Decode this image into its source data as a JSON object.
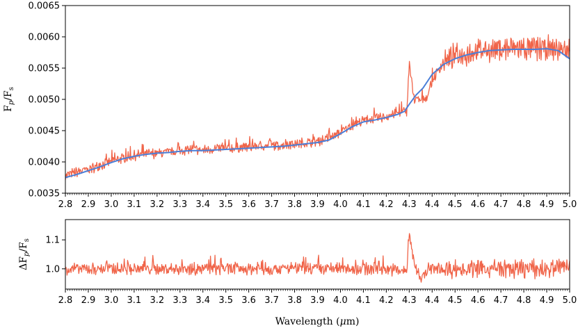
{
  "chart_data": [
    {
      "type": "line",
      "ylabel": "F_p/F_s",
      "xlabel": "",
      "xlim": [
        2.8,
        5.0
      ],
      "ylim": [
        0.0035,
        0.0065
      ],
      "x_ticks": [
        "2.8",
        "2.9",
        "3.0",
        "3.1",
        "3.2",
        "3.3",
        "3.4",
        "3.5",
        "3.6",
        "3.7",
        "3.8",
        "3.9",
        "4.0",
        "4.1",
        "4.2",
        "4.3",
        "4.4",
        "4.5",
        "4.6",
        "4.7",
        "4.8",
        "4.9",
        "5.0"
      ],
      "y_ticks": [
        "0.0035",
        "0.0040",
        "0.0045",
        "0.0050",
        "0.0055",
        "0.0060",
        "0.0065"
      ],
      "grid": false,
      "series": [
        {
          "color": "#f06449",
          "style": "noisy high-resolution spectrum",
          "x": [
            2.8,
            2.85,
            2.9,
            2.95,
            3.0,
            3.05,
            3.1,
            3.15,
            3.2,
            3.25,
            3.3,
            3.35,
            3.4,
            3.45,
            3.5,
            3.55,
            3.6,
            3.65,
            3.7,
            3.75,
            3.8,
            3.85,
            3.9,
            3.95,
            4.0,
            4.05,
            4.1,
            4.15,
            4.2,
            4.25,
            4.29,
            4.3,
            4.32,
            4.35,
            4.38,
            4.4,
            4.45,
            4.5,
            4.55,
            4.6,
            4.65,
            4.7,
            4.75,
            4.8,
            4.85,
            4.9,
            4.95,
            5.0
          ],
          "y": [
            0.00378,
            0.00384,
            0.00388,
            0.00394,
            0.00401,
            0.00406,
            0.0041,
            0.00413,
            0.00414,
            0.00415,
            0.00418,
            0.0042,
            0.00419,
            0.00421,
            0.00421,
            0.00423,
            0.00424,
            0.00426,
            0.00426,
            0.00427,
            0.00429,
            0.00431,
            0.00433,
            0.00438,
            0.00447,
            0.00459,
            0.00466,
            0.00469,
            0.00473,
            0.00478,
            0.00482,
            0.0056,
            0.005,
            0.00498,
            0.00505,
            0.0053,
            0.0056,
            0.0057,
            0.00574,
            0.00578,
            0.0058,
            0.00581,
            0.00582,
            0.00582,
            0.00581,
            0.00582,
            0.0058,
            0.00578
          ]
        },
        {
          "color": "#4a7fd8",
          "style": "smooth model",
          "x": [
            2.8,
            2.85,
            2.9,
            2.95,
            3.0,
            3.05,
            3.1,
            3.15,
            3.2,
            3.25,
            3.3,
            3.35,
            3.4,
            3.45,
            3.5,
            3.55,
            3.6,
            3.65,
            3.7,
            3.75,
            3.8,
            3.85,
            3.9,
            3.95,
            4.0,
            4.05,
            4.1,
            4.15,
            4.2,
            4.25,
            4.28,
            4.3,
            4.33,
            4.36,
            4.4,
            4.45,
            4.5,
            4.55,
            4.6,
            4.65,
            4.7,
            4.75,
            4.8,
            4.85,
            4.9,
            4.95,
            5.0
          ],
          "y": [
            0.00375,
            0.0038,
            0.00386,
            0.00392,
            0.00399,
            0.00405,
            0.00409,
            0.00412,
            0.00414,
            0.00415,
            0.00417,
            0.00418,
            0.00418,
            0.00419,
            0.0042,
            0.00421,
            0.00422,
            0.00423,
            0.00424,
            0.00425,
            0.00427,
            0.00429,
            0.00431,
            0.00435,
            0.00445,
            0.00456,
            0.00464,
            0.00467,
            0.00471,
            0.00476,
            0.00481,
            0.00492,
            0.00507,
            0.00518,
            0.0054,
            0.00556,
            0.00565,
            0.00571,
            0.00575,
            0.00578,
            0.00579,
            0.0058,
            0.0058,
            0.0058,
            0.00581,
            0.00578,
            0.00565
          ]
        }
      ]
    },
    {
      "type": "line",
      "ylabel": "ΔF_p/F_s",
      "xlabel": "Wavelength (μm)",
      "xlim": [
        2.8,
        5.0
      ],
      "ylim": [
        0.93,
        1.17
      ],
      "x_ticks": [
        "2.8",
        "2.9",
        "3.0",
        "3.1",
        "3.2",
        "3.3",
        "3.4",
        "3.5",
        "3.6",
        "3.7",
        "3.8",
        "3.9",
        "4.0",
        "4.1",
        "4.2",
        "4.3",
        "4.4",
        "4.5",
        "4.6",
        "4.7",
        "4.8",
        "4.9",
        "5.0"
      ],
      "y_ticks": [
        "1.0",
        "1.1"
      ],
      "grid": false,
      "series": [
        {
          "color": "#f06449",
          "style": "residual ratio around 1.0",
          "x": [
            2.8,
            2.9,
            3.0,
            3.1,
            3.2,
            3.3,
            3.4,
            3.5,
            3.6,
            3.7,
            3.8,
            3.9,
            4.0,
            4.1,
            4.2,
            4.29,
            4.3,
            4.32,
            4.35,
            4.4,
            4.45,
            4.5,
            4.6,
            4.7,
            4.8,
            4.9,
            5.0
          ],
          "y": [
            1.0,
            1.0,
            1.0,
            1.0,
            1.0,
            1.0,
            1.0,
            1.0,
            1.0,
            1.0,
            1.0,
            1.0,
            1.0,
            1.0,
            1.0,
            0.99,
            1.13,
            1.02,
            0.97,
            1.0,
            1.0,
            1.0,
            1.0,
            1.0,
            1.0,
            1.0,
            1.01
          ]
        }
      ]
    }
  ],
  "labels": {
    "top_y": "F",
    "top_y_sub1": "p",
    "top_y_slash": "/F",
    "top_y_sub2": "s",
    "bot_y_prefix": "ΔF",
    "bot_y_sub1": "p",
    "bot_y_slash": "/F",
    "bot_y_sub2": "s",
    "x_main": "Wavelength (",
    "x_mu": "μ",
    "x_unit": "m)"
  }
}
